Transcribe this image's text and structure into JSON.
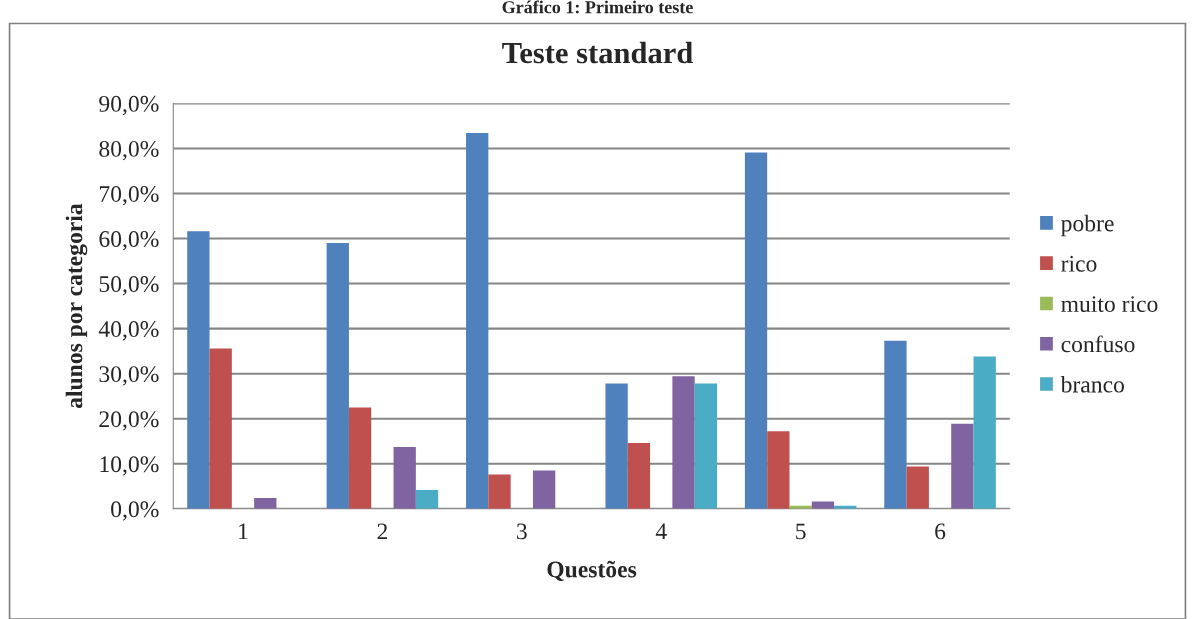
{
  "chart_data": {
    "type": "bar",
    "title": "Teste standard",
    "subtitle": "Gráfico 1: Primeiro teste",
    "xlabel": "Questões",
    "ylabel": "alunos por categoria",
    "categories": [
      "1",
      "2",
      "3",
      "4",
      "5",
      "6"
    ],
    "series": [
      {
        "name": "pobre",
        "color": "#4f81bd",
        "values": [
          61.6,
          59.0,
          83.4,
          27.8,
          79.1,
          37.3
        ]
      },
      {
        "name": "rico",
        "color": "#c0504d",
        "values": [
          35.6,
          22.5,
          7.6,
          14.6,
          17.2,
          9.4
        ]
      },
      {
        "name": "muito rico",
        "color": "#9bbb59",
        "values": [
          null,
          null,
          null,
          null,
          0.7,
          null
        ]
      },
      {
        "name": "confuso",
        "color": "#8064a2",
        "values": [
          2.4,
          13.7,
          8.5,
          29.4,
          1.6,
          18.9
        ]
      },
      {
        "name": "branco",
        "color": "#4bacc6",
        "values": [
          null,
          4.2,
          null,
          27.8,
          0.7,
          33.8
        ]
      }
    ],
    "ylim": [
      0,
      90
    ],
    "yticks": [
      {
        "value": 0,
        "label": "0,0%"
      },
      {
        "value": 10,
        "label": "10,0%"
      },
      {
        "value": 20,
        "label": "20,0%"
      },
      {
        "value": 30,
        "label": "30,0%"
      },
      {
        "value": 40,
        "label": "40,0%"
      },
      {
        "value": 50,
        "label": "50,0%"
      },
      {
        "value": 60,
        "label": "60,0%"
      },
      {
        "value": 70,
        "label": "70,0%"
      },
      {
        "value": 80,
        "label": "80,0%"
      },
      {
        "value": 90,
        "label": "90,0%"
      }
    ],
    "grid": "y",
    "legend": "right"
  }
}
